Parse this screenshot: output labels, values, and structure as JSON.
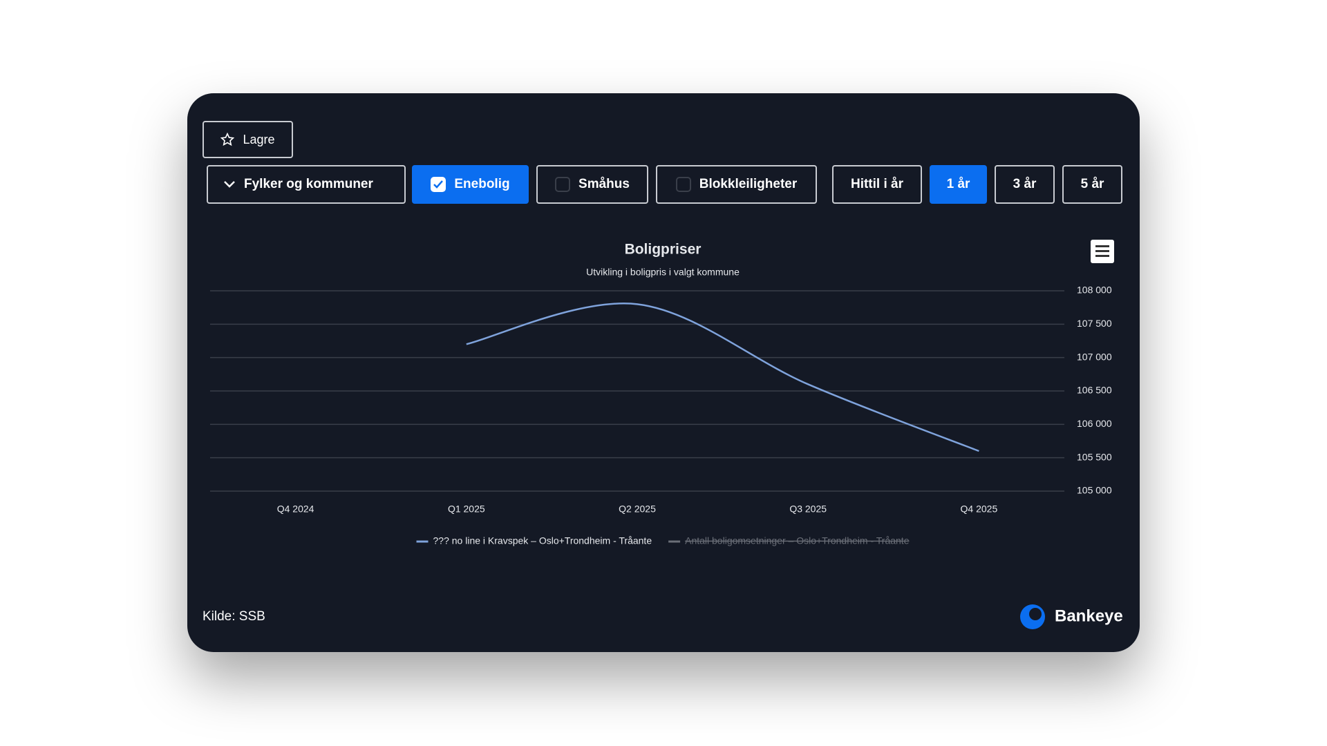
{
  "save_button": "Lagre",
  "region_dropdown": "Fylker og kommuner",
  "property_types": [
    {
      "label": "Enebolig",
      "checked": true
    },
    {
      "label": "Småhus",
      "checked": false
    },
    {
      "label": "Blokkleiligheter",
      "checked": false
    }
  ],
  "periods": [
    {
      "label": "Hittil i år",
      "active": false
    },
    {
      "label": "1 år",
      "active": true
    },
    {
      "label": "3 år",
      "active": false
    },
    {
      "label": "5 år",
      "active": false
    }
  ],
  "chart_data": {
    "type": "line",
    "title": "Boligpriser",
    "subtitle": "Utvikling i boligpris i valgt kommune",
    "categories": [
      "Q4 2024",
      "Q1 2025",
      "Q2 2025",
      "Q3 2025",
      "Q4 2025"
    ],
    "series": [
      {
        "name": "??? no line i Kravspek – Oslo+Trondheim - Tråante",
        "color": "#7fa3dc",
        "values": [
          null,
          107200,
          107800,
          106600,
          105600
        ]
      },
      {
        "name": "Antall boligomsetninger – Oslo+Trondheim - Tråante",
        "color": "#6b6f78",
        "hidden": true,
        "values": [
          null,
          null,
          null,
          null,
          null
        ]
      }
    ],
    "ylim": [
      105000,
      108000
    ],
    "yticks": [
      {
        "value": 105000,
        "label": "105 000"
      },
      {
        "value": 105500,
        "label": "105 500"
      },
      {
        "value": 106000,
        "label": "106 000"
      },
      {
        "value": 106500,
        "label": "106 500"
      },
      {
        "value": 107000,
        "label": "107 000"
      },
      {
        "value": 107500,
        "label": "107 500"
      },
      {
        "value": 108000,
        "label": "108 000"
      }
    ],
    "grid": true,
    "y_axis_side": "right",
    "smooth": true
  },
  "source": "Kilde: SSB",
  "brand": "Bankeye"
}
